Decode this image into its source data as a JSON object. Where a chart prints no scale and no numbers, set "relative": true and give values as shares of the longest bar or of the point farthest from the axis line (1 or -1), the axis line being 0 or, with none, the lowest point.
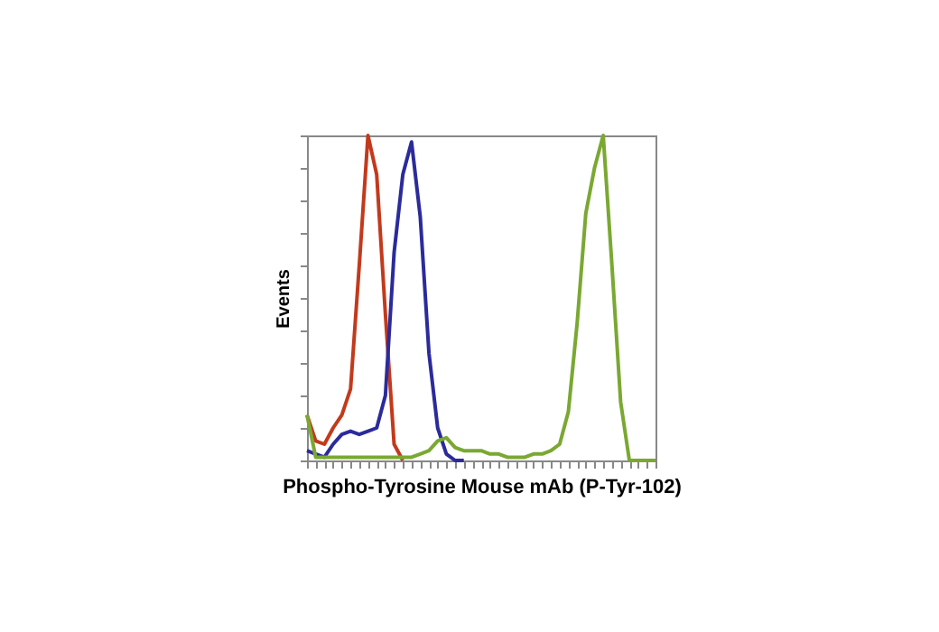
{
  "chart_data": {
    "type": "line",
    "relative": true,
    "xlabel": "Phospho-Tyrosine Mouse mAb (P-Tyr-102)",
    "ylabel": "Events",
    "tick_labels": false,
    "grid": false,
    "legend": false,
    "marker": "none",
    "line_style": "solid",
    "categories": [
      null,
      null,
      null,
      null,
      null,
      null,
      null,
      null,
      null,
      null,
      null,
      null,
      null,
      null,
      null,
      null,
      null,
      null,
      null,
      null,
      null,
      null,
      null,
      null,
      null,
      null,
      null,
      null,
      null,
      null,
      null,
      null,
      null,
      null,
      null,
      null,
      null,
      null,
      null,
      null,
      null
    ],
    "series": [
      {
        "color": "#c23a1c",
        "values": [
          0.14,
          0.06,
          0.05,
          0.1,
          0.14,
          0.22,
          0.6,
          1.0,
          0.88,
          0.45,
          0.05,
          0,
          null,
          null,
          null,
          null,
          null,
          null,
          null,
          null,
          null,
          null,
          null,
          null,
          null,
          null,
          null,
          null,
          null,
          null,
          null,
          null,
          null,
          null,
          null,
          null,
          null,
          null,
          null,
          null,
          null
        ]
      },
      {
        "color": "#2b2b9c",
        "values": [
          0.03,
          0.02,
          0.01,
          0.05,
          0.08,
          0.09,
          0.08,
          0.09,
          0.1,
          0.2,
          0.64,
          0.88,
          0.98,
          0.75,
          0.33,
          0.1,
          0.02,
          0,
          0,
          null,
          null,
          null,
          null,
          null,
          null,
          null,
          null,
          null,
          null,
          null,
          null,
          null,
          null,
          null,
          null,
          null,
          null,
          null,
          null,
          null,
          null
        ]
      },
      {
        "color": "#7aa832",
        "values": [
          0.14,
          0.01,
          0.01,
          0.01,
          0.01,
          0.01,
          0.01,
          0.01,
          0.01,
          0.01,
          0.01,
          0.01,
          0.01,
          0.02,
          0.03,
          0.06,
          0.07,
          0.04,
          0.03,
          0.03,
          0.03,
          0.02,
          0.02,
          0.01,
          0.01,
          0.01,
          0.02,
          0.02,
          0.03,
          0.05,
          0.15,
          0.42,
          0.76,
          0.9,
          1.0,
          0.6,
          0.18,
          0,
          0,
          0,
          0
        ]
      }
    ]
  }
}
